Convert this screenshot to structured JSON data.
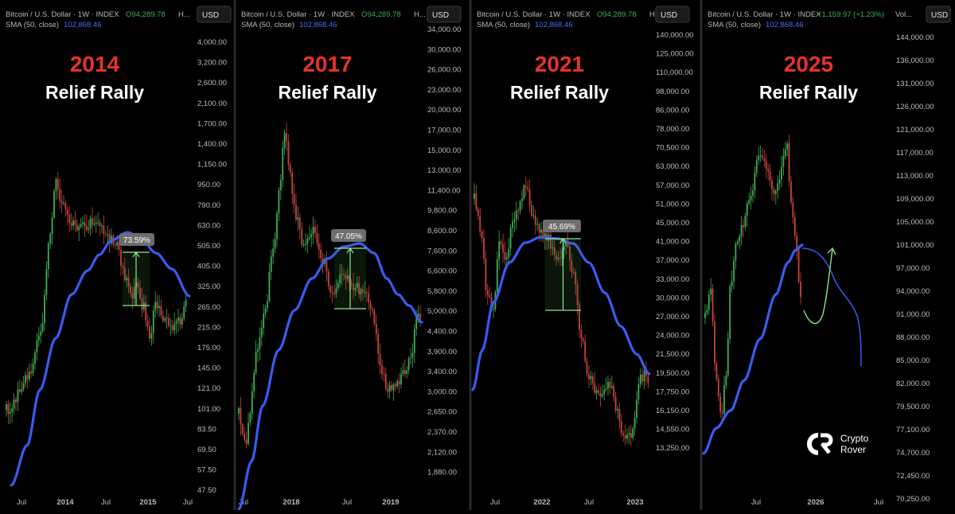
{
  "colors": {
    "background": "#000000",
    "divider": "#2a2a2a",
    "sma": "#3a5bf0",
    "candle_up": "#3fae55",
    "candle_down": "#c9453e",
    "header_text": "#b8b8b8",
    "header_value": "#3fae55",
    "sma_value": "#4a6cf7",
    "year_title": "#e8322d",
    "subtitle": "#ffffff",
    "axis_text": "#bdbdbd",
    "measure": "#8ee68a",
    "badge_bg": "#6d6d6d"
  },
  "panels": [
    {
      "id": "p2014",
      "header_pair": "Bitcoin / U.S. Dollar · 1W · INDEX",
      "header_value": "O94,289.78",
      "header_tail": "H...",
      "sma_label": "SMA (50, close)",
      "sma_value": "102,868.46",
      "currency_button": "USD",
      "year": "2014",
      "subtitle": "Relief Rally",
      "badge": "73.59%",
      "y_ticks": [
        "4,000.00",
        "3,200.00",
        "2,600.00",
        "2,100.00",
        "1,700.00",
        "1,400.00",
        "1,150.00",
        "950.00",
        "790.00",
        "630.00",
        "505.00",
        "405.00",
        "325.00",
        "265.00",
        "215.00",
        "175.00",
        "145.00",
        "121.00",
        "101.00",
        "83.50",
        "69.50",
        "57.50",
        "47.50"
      ],
      "x_ticks": [
        "Jul",
        "2014",
        "Jul",
        "2015",
        "Jul"
      ]
    },
    {
      "id": "p2017",
      "header_pair": "Bitcoin / U.S. Dollar · 1W · INDEX",
      "header_value": "O94,289.78",
      "header_tail": "H...",
      "sma_label": "SMA (50, close)",
      "sma_value": "102,868.46",
      "currency_button": "USD",
      "year": "2017",
      "subtitle": "Relief Rally",
      "badge": "47.05%",
      "y_ticks": [
        "34,000.00",
        "30,000.00",
        "26,000.00",
        "23,000.00",
        "20,000.00",
        "17,000.00",
        "15,000.00",
        "13,000.00",
        "11,400.00",
        "9,800.00",
        "8,600.00",
        "7,600.00",
        "6,600.00",
        "5,800.00",
        "5,000.00",
        "4,400.00",
        "3,900.00",
        "3,400.00",
        "3,000.00",
        "2,650.00",
        "2,370.00",
        "2,120.00",
        "1,880.00"
      ],
      "x_ticks": [
        "Jul",
        "2018",
        "Jul",
        "2019"
      ]
    },
    {
      "id": "p2021",
      "header_pair": "Bitcoin / U.S. Dollar · 1W · INDEX",
      "header_value": "O94,289.78",
      "header_tail": "H...",
      "sma_label": "SMA (50, close)",
      "sma_value": "102,868.46",
      "currency_button": "USD",
      "year": "2021",
      "subtitle": "Relief Rally",
      "badge": "45.69%",
      "y_ticks": [
        "140,000.00",
        "125,000.00",
        "110,000.00",
        "98,000.00",
        "86,000.00",
        "78,000.00",
        "70,500.00",
        "63,000.00",
        "57,000.00",
        "51,000.00",
        "45,000.00",
        "41,000.00",
        "37,000.00",
        "33,000.00",
        "30,000.00",
        "27,000.00",
        "24,000.00",
        "21,500.00",
        "19,500.00",
        "17,750.00",
        "16,150.00",
        "14,550.00",
        "13,250.00"
      ],
      "x_ticks": [
        "Jul",
        "2022",
        "Jul",
        "2023"
      ]
    },
    {
      "id": "p2025",
      "header_pair": "Bitcoin / U.S. Dollar · 1W · INDEX",
      "header_value": "+1,159.97 (+1.23%)",
      "header_tail": "Vol...",
      "sma_label": "SMA (50, close)",
      "sma_value": "102,868.46",
      "currency_button": "USD",
      "year": "2025",
      "subtitle": "Relief Rally",
      "badge": "",
      "y_ticks": [
        "144,000.00",
        "136,000.00",
        "131,000.00",
        "126,000.00",
        "121,000.00",
        "117,000.00",
        "113,000.00",
        "109,000.00",
        "105,000.00",
        "101,000.00",
        "97,000.00",
        "94,000.00",
        "91,000.00",
        "88,000.00",
        "85,000.00",
        "82,000.00",
        "79,500.00",
        "77,100.00",
        "74,700.00",
        "72,450.00",
        "70,250.00"
      ],
      "x_ticks": [
        "Jul",
        "2026",
        "Jul"
      ]
    }
  ],
  "chart_data": [
    {
      "type": "candlestick",
      "title": "2014",
      "subtitle": "Relief Rally",
      "series": [
        {
          "name": "SMA (50, close)"
        }
      ],
      "annotation": {
        "type": "measure",
        "label": "73.59%",
        "from": 265,
        "to": 460
      },
      "approx_prices": {
        "start": 75,
        "peak": 1150,
        "low_after_peak": 175,
        "end": 310
      }
    },
    {
      "type": "candlestick",
      "title": "2017",
      "subtitle": "Relief Rally",
      "series": [
        {
          "name": "SMA (50, close)"
        }
      ],
      "annotation": {
        "type": "measure",
        "label": "47.05%",
        "from": 5800,
        "to": 8530
      },
      "approx_prices": {
        "start": 2370,
        "peak": 20000,
        "low_after_peak": 3200,
        "end": 5300
      }
    },
    {
      "type": "candlestick",
      "title": "2021",
      "subtitle": "Relief Rally",
      "series": [
        {
          "name": "SMA (50, close)"
        }
      ],
      "annotation": {
        "type": "measure",
        "label": "45.69%",
        "from": 33000,
        "to": 48100
      },
      "approx_prices": {
        "start": 60000,
        "peak": 69000,
        "low_after_peak": 15500,
        "end": 23500
      }
    },
    {
      "type": "candlestick",
      "title": "2025",
      "subtitle": "Relief Rally",
      "series": [
        {
          "name": "SMA (50, close)"
        }
      ],
      "annotation": {
        "type": "projection",
        "label": ""
      },
      "approx_prices": {
        "start": 79000,
        "peak": 126000,
        "end": 94000
      }
    }
  ],
  "logo": {
    "line1": "Crypto",
    "line2": "Rover"
  }
}
